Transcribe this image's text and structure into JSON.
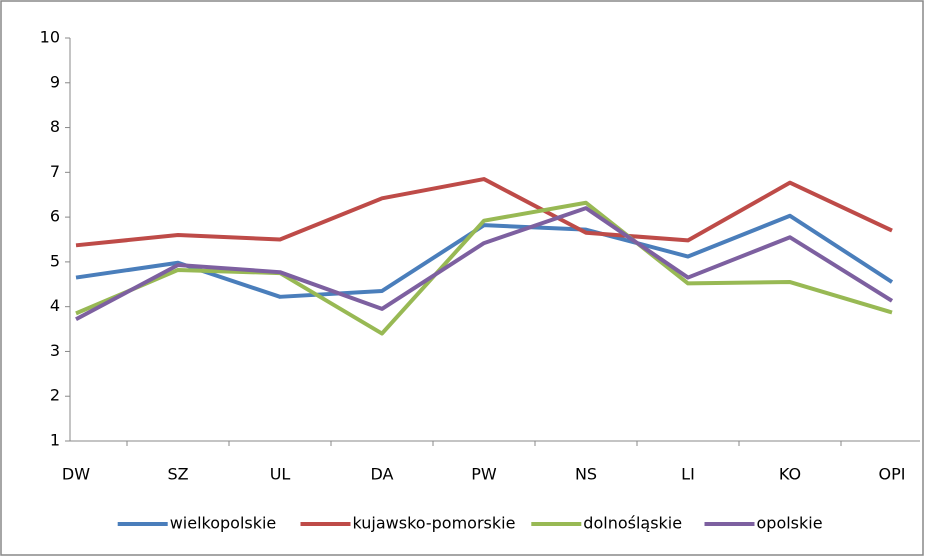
{
  "chart_data": {
    "type": "line",
    "categories": [
      "DW",
      "SZ",
      "UL",
      "DA",
      "PW",
      "NS",
      "LI",
      "KO",
      "OPI"
    ],
    "series": [
      {
        "name": "wielkopolskie",
        "color": "#4a7ebb",
        "values": [
          4.65,
          4.98,
          4.22,
          4.35,
          5.82,
          5.72,
          5.12,
          6.03,
          4.55
        ]
      },
      {
        "name": "kujawsko-pomorskie",
        "color": "#be4b48",
        "values": [
          5.37,
          5.6,
          5.5,
          6.42,
          6.85,
          5.65,
          5.48,
          6.77,
          5.7
        ]
      },
      {
        "name": "dolnośląskie",
        "color": "#98b954",
        "values": [
          3.85,
          4.82,
          4.75,
          3.4,
          5.92,
          6.32,
          4.52,
          4.55,
          3.87
        ]
      },
      {
        "name": "opolskie",
        "color": "#7d60a0",
        "values": [
          3.72,
          4.93,
          4.77,
          3.95,
          5.42,
          6.2,
          4.65,
          5.55,
          4.13
        ]
      }
    ],
    "ylim": [
      1,
      10
    ],
    "yticks": [
      1,
      2,
      3,
      4,
      5,
      6,
      7,
      8,
      9,
      10
    ],
    "legend": "bottom"
  }
}
